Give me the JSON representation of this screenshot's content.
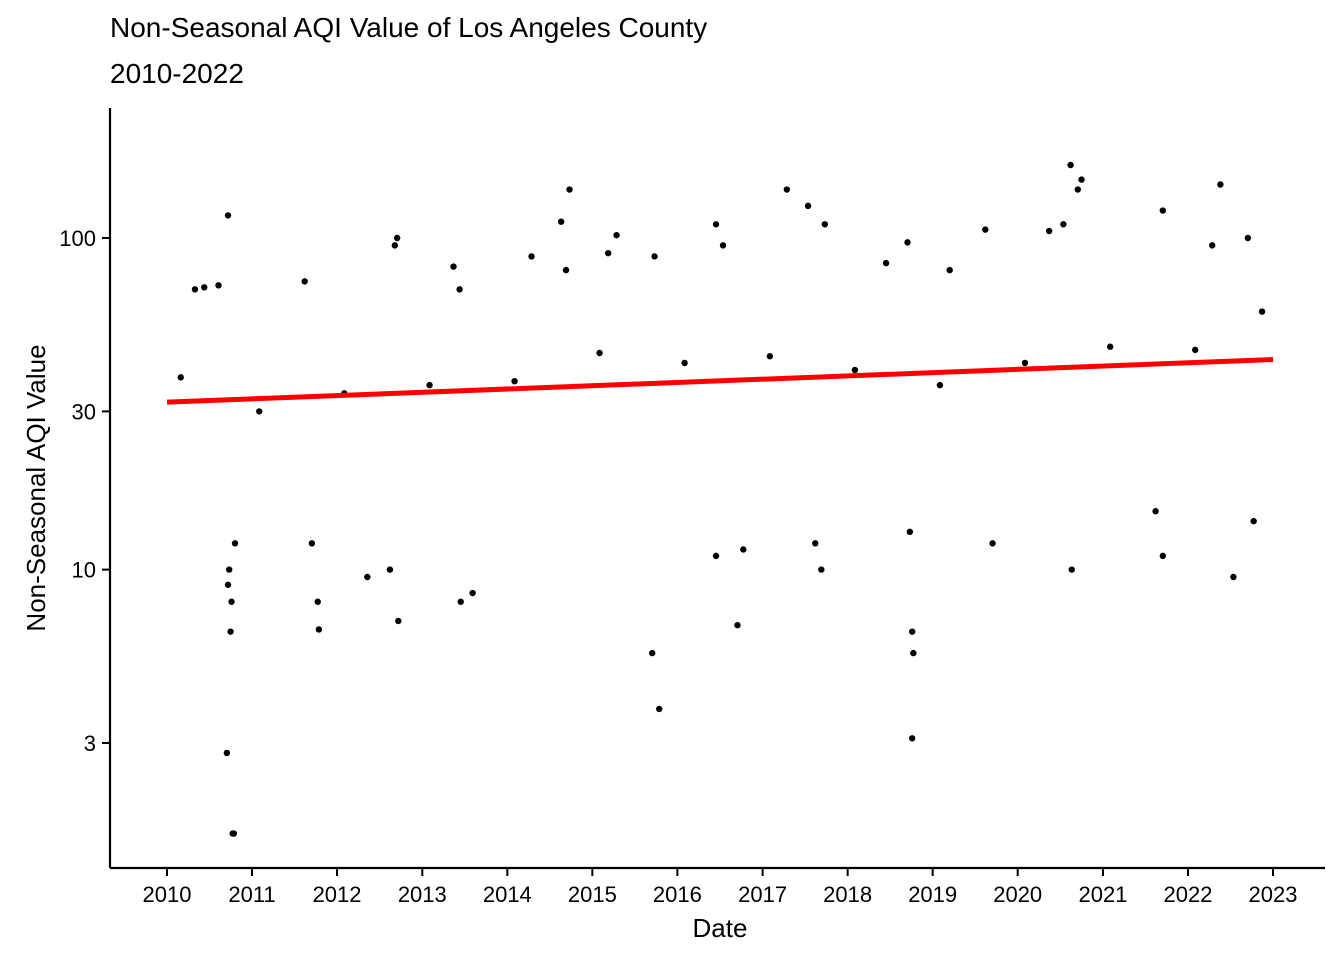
{
  "chart_data": {
    "type": "scatter",
    "title": "Non-Seasonal AQI Value of Los Angeles County",
    "subtitle": "2010-2022",
    "xlabel": "Date",
    "ylabel": "Non-Seasonal AQI Value",
    "x_scale": "date",
    "y_scale": "log10",
    "xlim": [
      "2010-01-01",
      "2023-01-01"
    ],
    "ylim": [
      1.7,
      190
    ],
    "x_ticks": [
      "2010",
      "2011",
      "2012",
      "2013",
      "2014",
      "2015",
      "2016",
      "2017",
      "2018",
      "2019",
      "2020",
      "2021",
      "2022",
      "2023"
    ],
    "y_ticks": [
      3,
      10,
      30,
      100
    ],
    "y_tick_labels": [
      "3",
      "10",
      "30",
      "100"
    ],
    "grid": false,
    "legend": "none",
    "point_color": "#000000",
    "trend_color": "#ff0000",
    "trend_line": {
      "x": [
        "2010-01-01",
        "2023-01-01"
      ],
      "y": [
        32,
        43
      ]
    },
    "series": [
      {
        "points": [
          [
            "2010-09-15",
            2.8
          ],
          [
            "2010-10-10",
            1.6
          ],
          [
            "2010-10-15",
            1.6
          ],
          [
            "2010-10-01",
            6.5
          ],
          [
            "2010-10-05",
            8
          ],
          [
            "2010-09-20",
            9
          ],
          [
            "2010-10-20",
            12
          ],
          [
            "2010-09-25",
            10
          ],
          [
            "2010-09-20",
            117
          ],
          [
            "2010-08-10",
            72
          ],
          [
            "2010-06-10",
            71
          ],
          [
            "2010-05-01",
            70
          ],
          [
            "2011-08-15",
            74
          ],
          [
            "2011-10-10",
            8
          ],
          [
            "2011-10-15",
            6.6
          ],
          [
            "2011-09-15",
            12
          ],
          [
            "2012-05-10",
            9.5
          ],
          [
            "2012-08-15",
            10
          ],
          [
            "2012-09-20",
            7
          ],
          [
            "2012-09-15",
            100
          ],
          [
            "2012-09-05",
            95
          ],
          [
            "2013-06-15",
            8
          ],
          [
            "2013-08-05",
            8.5
          ],
          [
            "2013-05-15",
            82
          ],
          [
            "2013-06-10",
            70
          ],
          [
            "2014-04-15",
            88
          ],
          [
            "2014-09-10",
            80
          ],
          [
            "2014-09-25",
            140
          ],
          [
            "2014-08-20",
            112
          ],
          [
            "2015-04-15",
            102
          ],
          [
            "2015-03-10",
            90
          ],
          [
            "2015-09-15",
            5.6
          ],
          [
            "2015-10-15",
            3.8
          ],
          [
            "2015-09-25",
            88
          ],
          [
            "2016-06-15",
            110
          ],
          [
            "2016-07-15",
            95
          ],
          [
            "2016-06-15",
            11
          ],
          [
            "2016-09-15",
            6.8
          ],
          [
            "2016-10-10",
            11.5
          ],
          [
            "2017-04-15",
            140
          ],
          [
            "2017-07-15",
            125
          ],
          [
            "2017-09-10",
            10
          ],
          [
            "2017-08-15",
            12
          ],
          [
            "2017-09-25",
            110
          ],
          [
            "2018-06-15",
            84
          ],
          [
            "2018-09-15",
            97
          ],
          [
            "2018-10-05",
            3.1
          ],
          [
            "2018-10-05",
            6.5
          ],
          [
            "2018-10-10",
            5.6
          ],
          [
            "2018-09-25",
            13
          ],
          [
            "2019-03-15",
            80
          ],
          [
            "2019-08-15",
            106
          ],
          [
            "2019-09-15",
            12
          ],
          [
            "2020-05-15",
            105
          ],
          [
            "2020-08-15",
            166
          ],
          [
            "2020-09-15",
            140
          ],
          [
            "2020-10-01",
            150
          ],
          [
            "2020-08-20",
            10
          ],
          [
            "2020-07-15",
            110
          ],
          [
            "2021-09-15",
            121
          ],
          [
            "2021-09-15",
            11
          ],
          [
            "2021-08-15",
            15
          ],
          [
            "2022-04-15",
            95
          ],
          [
            "2022-05-20",
            145
          ],
          [
            "2022-07-15",
            9.5
          ],
          [
            "2022-09-15",
            100
          ],
          [
            "2022-10-10",
            14
          ],
          [
            "2022-11-15",
            60
          ],
          [
            "2010-03-01",
            38
          ],
          [
            "2011-02-01",
            30
          ],
          [
            "2012-02-01",
            34
          ],
          [
            "2013-02-01",
            36
          ],
          [
            "2014-02-01",
            37
          ],
          [
            "2015-02-01",
            45
          ],
          [
            "2016-02-01",
            42
          ],
          [
            "2017-02-01",
            44
          ],
          [
            "2018-02-01",
            40
          ],
          [
            "2019-02-01",
            36
          ],
          [
            "2020-02-01",
            42
          ],
          [
            "2021-02-01",
            47
          ],
          [
            "2022-02-01",
            46
          ]
        ]
      }
    ]
  }
}
